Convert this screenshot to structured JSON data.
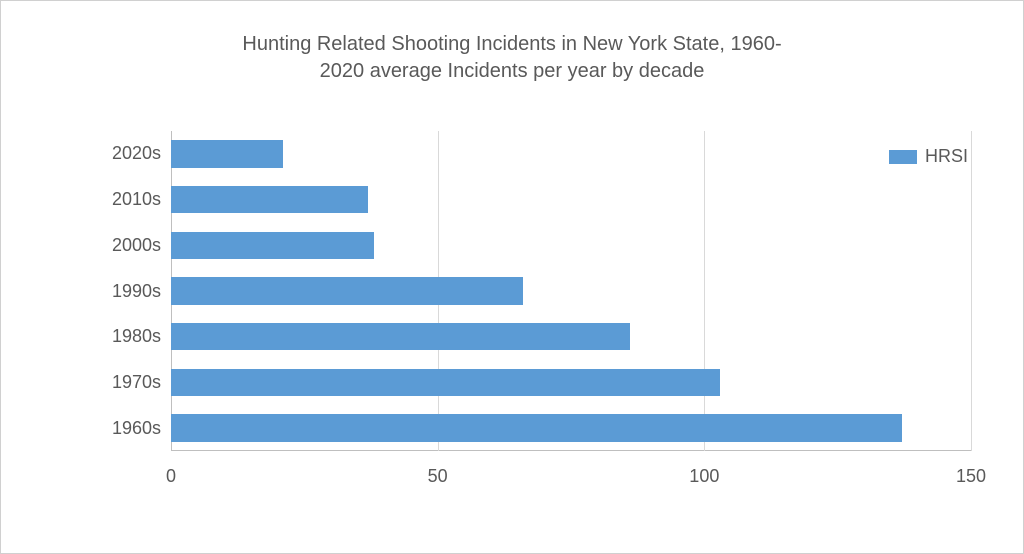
{
  "chart": {
    "type": "bar-horizontal",
    "title_line1": "Hunting Related Shooting Incidents in New York State, 1960-",
    "title_line2": "2020 average Incidents per year by decade",
    "title_fontsize": 20,
    "title_color": "#595959",
    "background_color": "#ffffff",
    "border_color": "#d0d0d0",
    "bar_color": "#5b9bd5",
    "grid_color": "#d9d9d9",
    "axis_color": "#bfbfbf",
    "label_color": "#595959",
    "label_fontsize": 18,
    "categories": [
      "2020s",
      "2010s",
      "2000s",
      "1990s",
      "1980s",
      "1970s",
      "1960s"
    ],
    "values": [
      21,
      37,
      38,
      66,
      86,
      103,
      137
    ],
    "xlim_min": 0,
    "xlim_max": 150,
    "xtick_step": 50,
    "xticks": [
      0,
      50,
      100,
      150
    ],
    "legend": {
      "label": "HRSI",
      "swatch_color": "#5b9bd5",
      "position": "top-right-inside"
    }
  }
}
